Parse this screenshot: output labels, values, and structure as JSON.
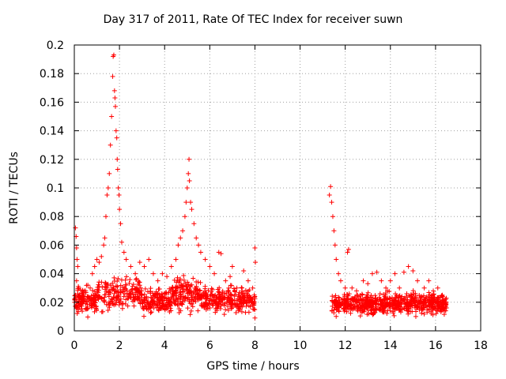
{
  "chart_data": {
    "type": "scatter",
    "title": "Day 317 of 2011, Rate Of TEC Index for receiver suwn",
    "xlabel": "GPS time / hours",
    "ylabel": "ROTI / TECUs",
    "xlim": [
      0,
      18
    ],
    "ylim": [
      0,
      0.2
    ],
    "xticks": [
      "0",
      "2",
      "4",
      "6",
      "8",
      "10",
      "12",
      "14",
      "16",
      "18"
    ],
    "yticks": [
      "0",
      "0.02",
      "0.04",
      "0.06",
      "0.08",
      "0.1",
      "0.12",
      "0.14",
      "0.16",
      "0.18",
      "0.2"
    ],
    "grid": true,
    "marker": "+",
    "color": "#ff0000",
    "series": [
      {
        "points": [
          [
            0.05,
            0.072
          ],
          [
            0.08,
            0.066
          ],
          [
            0.1,
            0.058
          ],
          [
            0.12,
            0.05
          ],
          [
            0.15,
            0.045
          ],
          [
            0.1,
            0.035
          ],
          [
            0.2,
            0.03
          ],
          [
            0.05,
            0.025
          ],
          [
            0.3,
            0.022
          ],
          [
            0.4,
            0.02
          ],
          [
            0.5,
            0.028
          ],
          [
            0.6,
            0.032
          ],
          [
            0.7,
            0.03
          ],
          [
            0.8,
            0.04
          ],
          [
            0.9,
            0.045
          ],
          [
            1.0,
            0.05
          ],
          [
            1.1,
            0.048
          ],
          [
            1.2,
            0.052
          ],
          [
            1.3,
            0.06
          ],
          [
            1.35,
            0.065
          ],
          [
            1.4,
            0.08
          ],
          [
            1.45,
            0.095
          ],
          [
            1.5,
            0.1
          ],
          [
            1.55,
            0.11
          ],
          [
            1.6,
            0.13
          ],
          [
            1.65,
            0.15
          ],
          [
            1.7,
            0.178
          ],
          [
            1.72,
            0.192
          ],
          [
            1.75,
            0.193
          ],
          [
            1.78,
            0.168
          ],
          [
            1.8,
            0.163
          ],
          [
            1.82,
            0.157
          ],
          [
            1.85,
            0.14
          ],
          [
            1.88,
            0.135
          ],
          [
            1.9,
            0.12
          ],
          [
            1.92,
            0.113
          ],
          [
            1.95,
            0.1
          ],
          [
            1.98,
            0.095
          ],
          [
            2.0,
            0.085
          ],
          [
            2.05,
            0.075
          ],
          [
            2.1,
            0.062
          ],
          [
            2.2,
            0.055
          ],
          [
            2.3,
            0.05
          ],
          [
            2.5,
            0.045
          ],
          [
            2.7,
            0.04
          ],
          [
            2.9,
            0.048
          ],
          [
            3.1,
            0.045
          ],
          [
            3.3,
            0.05
          ],
          [
            3.5,
            0.04
          ],
          [
            3.7,
            0.035
          ],
          [
            3.9,
            0.04
          ],
          [
            4.1,
            0.038
          ],
          [
            4.3,
            0.045
          ],
          [
            4.5,
            0.05
          ],
          [
            4.6,
            0.06
          ],
          [
            4.7,
            0.065
          ],
          [
            4.8,
            0.07
          ],
          [
            4.9,
            0.08
          ],
          [
            4.95,
            0.09
          ],
          [
            5.0,
            0.1
          ],
          [
            5.05,
            0.11
          ],
          [
            5.08,
            0.12
          ],
          [
            5.1,
            0.105
          ],
          [
            5.15,
            0.09
          ],
          [
            5.2,
            0.085
          ],
          [
            5.3,
            0.075
          ],
          [
            5.4,
            0.065
          ],
          [
            5.5,
            0.06
          ],
          [
            5.6,
            0.055
          ],
          [
            5.8,
            0.05
          ],
          [
            6.0,
            0.045
          ],
          [
            6.2,
            0.04
          ],
          [
            6.4,
            0.055
          ],
          [
            6.5,
            0.054
          ],
          [
            6.7,
            0.035
          ],
          [
            6.9,
            0.038
          ],
          [
            7.0,
            0.045
          ],
          [
            7.2,
            0.03
          ],
          [
            7.5,
            0.042
          ],
          [
            7.7,
            0.035
          ],
          [
            7.9,
            0.03
          ],
          [
            8.0,
            0.058
          ],
          [
            8.02,
            0.048
          ],
          [
            8.0,
            0.009
          ],
          [
            7.8,
            0.017
          ],
          [
            11.3,
            0.095
          ],
          [
            11.35,
            0.101
          ],
          [
            11.4,
            0.09
          ],
          [
            11.45,
            0.08
          ],
          [
            11.5,
            0.07
          ],
          [
            11.55,
            0.06
          ],
          [
            11.6,
            0.05
          ],
          [
            11.7,
            0.04
          ],
          [
            11.8,
            0.035
          ],
          [
            12.0,
            0.03
          ],
          [
            12.1,
            0.055
          ],
          [
            12.15,
            0.057
          ],
          [
            12.3,
            0.03
          ],
          [
            12.5,
            0.028
          ],
          [
            12.8,
            0.035
          ],
          [
            13.0,
            0.033
          ],
          [
            13.2,
            0.04
          ],
          [
            13.4,
            0.041
          ],
          [
            13.6,
            0.035
          ],
          [
            13.8,
            0.03
          ],
          [
            14.0,
            0.035
          ],
          [
            14.2,
            0.04
          ],
          [
            14.4,
            0.03
          ],
          [
            14.6,
            0.041
          ],
          [
            14.8,
            0.045
          ],
          [
            15.0,
            0.042
          ],
          [
            15.2,
            0.035
          ],
          [
            15.5,
            0.03
          ],
          [
            15.7,
            0.035
          ],
          [
            15.9,
            0.028
          ],
          [
            16.1,
            0.03
          ],
          [
            16.3,
            0.025
          ],
          [
            16.45,
            0.022
          ],
          [
            16.45,
            0.014
          ]
        ]
      }
    ]
  }
}
